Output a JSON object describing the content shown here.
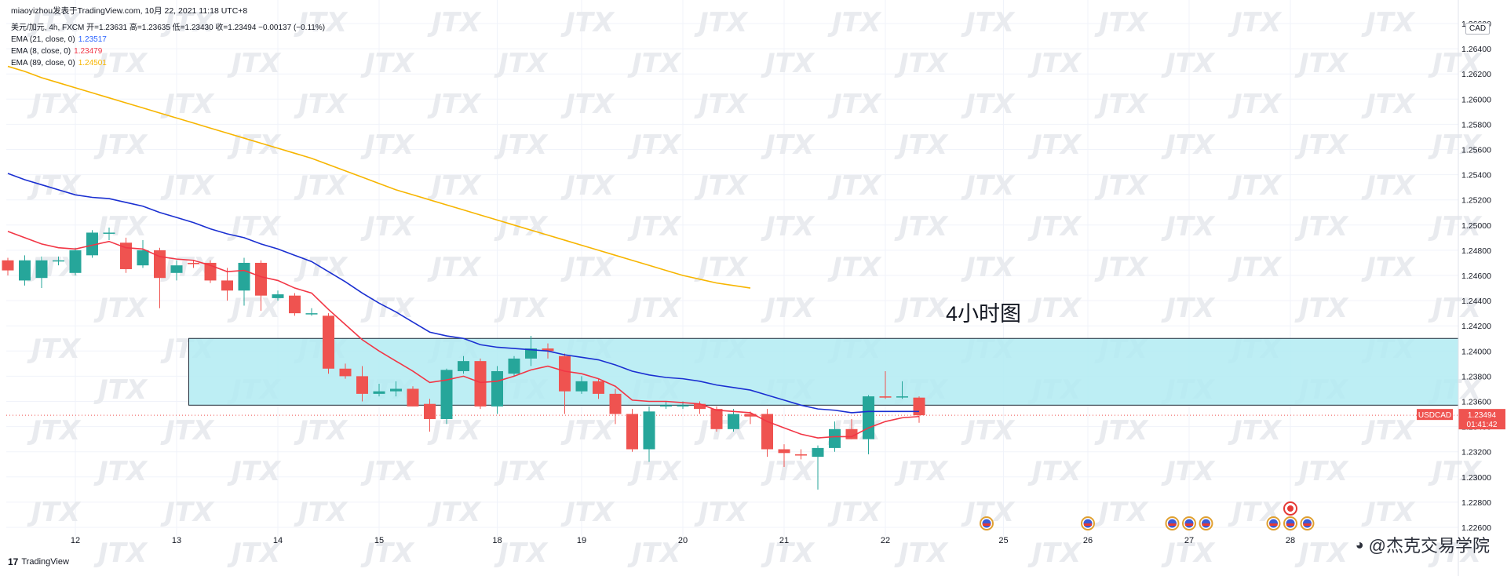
{
  "header": {
    "attribution": "miaoyizhou发表于TradingView.com, 10月 22, 2021 11:18 UTC+8",
    "ohlc_line": "美元/加元, 4h, FXCM 开=1.23631 高=1.23635 低=1.23430 收=1.23494 −0.00137 (−0.11%)",
    "indicators": [
      {
        "label": "EMA (21, close, 0)",
        "value": "1.23517",
        "color": "#2962ff"
      },
      {
        "label": "EMA (8, close, 0)",
        "value": "1.23479",
        "color": "#f23645"
      },
      {
        "label": "EMA (89, close, 0)",
        "value": "1.24501",
        "color": "#f7b500"
      }
    ]
  },
  "annotation_text": "4小时图",
  "currency_label": "CAD",
  "symbol_tag": {
    "symbol": "USDCAD",
    "price": "1.23494",
    "countdown": "01:41:42",
    "color": "#ef5350"
  },
  "footer": {
    "logo_text": "TradingView",
    "credit": "@杰克交易学院"
  },
  "watermark_text": "JTX",
  "chart_data": {
    "type": "candlestick",
    "title": "",
    "ylim": [
      1.226,
      1.266
    ],
    "y_ticks": [
      "1.26600",
      "1.26400",
      "1.26200",
      "1.26000",
      "1.25800",
      "1.25600",
      "1.25400",
      "1.25200",
      "1.25000",
      "1.24800",
      "1.24600",
      "1.24400",
      "1.24200",
      "1.24000",
      "1.23800",
      "1.23600",
      "1.23400",
      "1.23200",
      "1.23000",
      "1.22800",
      "1.22600"
    ],
    "x_ticks": [
      {
        "label": "12",
        "idx": 4
      },
      {
        "label": "13",
        "idx": 10
      },
      {
        "label": "14",
        "idx": 16
      },
      {
        "label": "15",
        "idx": 22
      },
      {
        "label": "18",
        "idx": 29
      },
      {
        "label": "19",
        "idx": 34
      },
      {
        "label": "20",
        "idx": 40
      },
      {
        "label": "21",
        "idx": 46
      },
      {
        "label": "22",
        "idx": 52
      },
      {
        "label": "25",
        "idx": 59
      },
      {
        "label": "26",
        "idx": 64
      },
      {
        "label": "27",
        "idx": 70
      },
      {
        "label": "28",
        "idx": 76
      }
    ],
    "candles": [
      {
        "o": 1.2472,
        "h": 1.2474,
        "l": 1.246,
        "c": 1.2464
      },
      {
        "o": 1.2456,
        "h": 1.2476,
        "l": 1.2452,
        "c": 1.2472
      },
      {
        "o": 1.2458,
        "h": 1.2475,
        "l": 1.245,
        "c": 1.2472
      },
      {
        "o": 1.2472,
        "h": 1.2475,
        "l": 1.2468,
        "c": 1.2472
      },
      {
        "o": 1.2462,
        "h": 1.2482,
        "l": 1.246,
        "c": 1.248
      },
      {
        "o": 1.2476,
        "h": 1.2496,
        "l": 1.2474,
        "c": 1.2494
      },
      {
        "o": 1.2494,
        "h": 1.2498,
        "l": 1.2488,
        "c": 1.2494
      },
      {
        "o": 1.2486,
        "h": 1.249,
        "l": 1.2462,
        "c": 1.2465
      },
      {
        "o": 1.2468,
        "h": 1.2488,
        "l": 1.2466,
        "c": 1.248
      },
      {
        "o": 1.248,
        "h": 1.2482,
        "l": 1.2434,
        "c": 1.2458
      },
      {
        "o": 1.2462,
        "h": 1.2472,
        "l": 1.2456,
        "c": 1.2468
      },
      {
        "o": 1.247,
        "h": 1.2472,
        "l": 1.2466,
        "c": 1.2469
      },
      {
        "o": 1.247,
        "h": 1.2472,
        "l": 1.2454,
        "c": 1.2456
      },
      {
        "o": 1.2456,
        "h": 1.2466,
        "l": 1.244,
        "c": 1.2448
      },
      {
        "o": 1.2448,
        "h": 1.2474,
        "l": 1.2436,
        "c": 1.247
      },
      {
        "o": 1.247,
        "h": 1.2472,
        "l": 1.2432,
        "c": 1.2444
      },
      {
        "o": 1.2442,
        "h": 1.2448,
        "l": 1.244,
        "c": 1.2445
      },
      {
        "o": 1.2444,
        "h": 1.2446,
        "l": 1.2428,
        "c": 1.243
      },
      {
        "o": 1.243,
        "h": 1.2434,
        "l": 1.2428,
        "c": 1.243
      },
      {
        "o": 1.2428,
        "h": 1.243,
        "l": 1.2382,
        "c": 1.2386
      },
      {
        "o": 1.2386,
        "h": 1.239,
        "l": 1.2378,
        "c": 1.238
      },
      {
        "o": 1.238,
        "h": 1.2388,
        "l": 1.236,
        "c": 1.2366
      },
      {
        "o": 1.2366,
        "h": 1.2374,
        "l": 1.2364,
        "c": 1.2368
      },
      {
        "o": 1.2368,
        "h": 1.2376,
        "l": 1.2364,
        "c": 1.237
      },
      {
        "o": 1.237,
        "h": 1.2372,
        "l": 1.2356,
        "c": 1.2356
      },
      {
        "o": 1.2358,
        "h": 1.2362,
        "l": 1.2336,
        "c": 1.2346
      },
      {
        "o": 1.2346,
        "h": 1.2386,
        "l": 1.2342,
        "c": 1.2385
      },
      {
        "o": 1.2384,
        "h": 1.2396,
        "l": 1.2382,
        "c": 1.2392
      },
      {
        "o": 1.2392,
        "h": 1.2394,
        "l": 1.2354,
        "c": 1.2356
      },
      {
        "o": 1.2356,
        "h": 1.2388,
        "l": 1.235,
        "c": 1.2384
      },
      {
        "o": 1.2382,
        "h": 1.2396,
        "l": 1.238,
        "c": 1.2394
      },
      {
        "o": 1.2394,
        "h": 1.2412,
        "l": 1.2388,
        "c": 1.2402
      },
      {
        "o": 1.2402,
        "h": 1.2406,
        "l": 1.2394,
        "c": 1.24
      },
      {
        "o": 1.2396,
        "h": 1.2398,
        "l": 1.235,
        "c": 1.2368
      },
      {
        "o": 1.2368,
        "h": 1.238,
        "l": 1.2366,
        "c": 1.2376
      },
      {
        "o": 1.2376,
        "h": 1.2378,
        "l": 1.2362,
        "c": 1.2366
      },
      {
        "o": 1.2366,
        "h": 1.237,
        "l": 1.2342,
        "c": 1.235
      },
      {
        "o": 1.235,
        "h": 1.2354,
        "l": 1.232,
        "c": 1.2322
      },
      {
        "o": 1.2322,
        "h": 1.2356,
        "l": 1.2312,
        "c": 1.2352
      },
      {
        "o": 1.2356,
        "h": 1.236,
        "l": 1.2354,
        "c": 1.2357
      },
      {
        "o": 1.2356,
        "h": 1.236,
        "l": 1.2354,
        "c": 1.2357
      },
      {
        "o": 1.2358,
        "h": 1.236,
        "l": 1.235,
        "c": 1.2354
      },
      {
        "o": 1.2354,
        "h": 1.2356,
        "l": 1.2336,
        "c": 1.2338
      },
      {
        "o": 1.2338,
        "h": 1.2354,
        "l": 1.2336,
        "c": 1.235
      },
      {
        "o": 1.235,
        "h": 1.2352,
        "l": 1.2342,
        "c": 1.2348
      },
      {
        "o": 1.235,
        "h": 1.2354,
        "l": 1.2316,
        "c": 1.2322
      },
      {
        "o": 1.2322,
        "h": 1.2326,
        "l": 1.2308,
        "c": 1.2319
      },
      {
        "o": 1.2318,
        "h": 1.2322,
        "l": 1.2314,
        "c": 1.2317
      },
      {
        "o": 1.2316,
        "h": 1.2325,
        "l": 1.229,
        "c": 1.2323
      },
      {
        "o": 1.2323,
        "h": 1.2344,
        "l": 1.232,
        "c": 1.2338
      },
      {
        "o": 1.2338,
        "h": 1.2346,
        "l": 1.233,
        "c": 1.233
      },
      {
        "o": 1.233,
        "h": 1.2365,
        "l": 1.2318,
        "c": 1.2364
      },
      {
        "o": 1.2364,
        "h": 1.2384,
        "l": 1.2362,
        "c": 1.2363
      },
      {
        "o": 1.2364,
        "h": 1.2376,
        "l": 1.2362,
        "c": 1.2364
      },
      {
        "o": 1.2363,
        "h": 1.2364,
        "l": 1.2343,
        "c": 1.2349
      }
    ],
    "ema_fast": [
      1.2495,
      1.249,
      1.2485,
      1.2482,
      1.2481,
      1.2484,
      1.2487,
      1.2482,
      1.2481,
      1.2475,
      1.2473,
      1.2472,
      1.2468,
      1.2463,
      1.2464,
      1.2459,
      1.2456,
      1.245,
      1.2446,
      1.2433,
      1.2421,
      1.2409,
      1.24,
      1.2392,
      1.2384,
      1.2375,
      1.2377,
      1.238,
      1.2375,
      1.2376,
      1.238,
      1.2385,
      1.2388,
      1.2384,
      1.2382,
      1.2378,
      1.2372,
      1.2361,
      1.236,
      1.236,
      1.2359,
      1.2358,
      1.2353,
      1.2352,
      1.2351,
      1.2344,
      1.2339,
      1.2334,
      1.2331,
      1.2332,
      1.2332,
      1.2339,
      1.2344,
      1.2347,
      1.2348
    ],
    "ema_slow": [
      1.2541,
      1.2536,
      1.2532,
      1.2528,
      1.2524,
      1.2522,
      1.2521,
      1.2518,
      1.2515,
      1.251,
      1.2506,
      1.2502,
      1.2497,
      1.2493,
      1.249,
      1.2485,
      1.2481,
      1.2476,
      1.2471,
      1.2463,
      1.2455,
      1.2446,
      1.2438,
      1.2431,
      1.2423,
      1.2415,
      1.2412,
      1.241,
      1.2405,
      1.2403,
      1.2402,
      1.2401,
      1.24,
      1.2397,
      1.2395,
      1.2393,
      1.2389,
      1.2384,
      1.2381,
      1.2379,
      1.2378,
      1.2376,
      1.2373,
      1.2371,
      1.2369,
      1.2365,
      1.2361,
      1.2357,
      1.2354,
      1.2353,
      1.2351,
      1.2352,
      1.2352,
      1.2352,
      1.2352
    ],
    "ema_long": [
      1.2626,
      1.2622,
      1.2617,
      1.2613,
      1.2609,
      1.2605,
      1.2601,
      1.2597,
      1.2593,
      1.2589,
      1.2585,
      1.2581,
      1.2577,
      1.2573,
      1.2569,
      1.2565,
      1.2561,
      1.2557,
      1.2553,
      1.2548,
      1.2543,
      1.2538,
      1.2533,
      1.2528,
      1.2524,
      1.252,
      1.2516,
      1.2512,
      1.2508,
      1.2504,
      1.25,
      1.2496,
      1.2492,
      1.2488,
      1.2484,
      1.248,
      1.2476,
      1.2472,
      1.2468,
      1.2464,
      1.246,
      1.2457,
      1.2454,
      1.2452,
      1.245
    ],
    "zone": {
      "y_top": 1.241,
      "y_bottom": 1.2357,
      "start_idx": 11,
      "color": "#b2ebf2"
    },
    "up_color": "#26a69a",
    "down_color": "#ef5350",
    "event_flags": [
      {
        "idx": 58,
        "country": "US"
      },
      {
        "idx": 64,
        "country": "US"
      },
      {
        "idx": 69,
        "country": "US"
      },
      {
        "idx": 70,
        "country": "US"
      },
      {
        "idx": 71,
        "country": "US"
      },
      {
        "idx": 75,
        "country": "US"
      },
      {
        "idx": 76,
        "country": "US",
        "stack": "CA"
      },
      {
        "idx": 77,
        "country": "US"
      }
    ]
  }
}
